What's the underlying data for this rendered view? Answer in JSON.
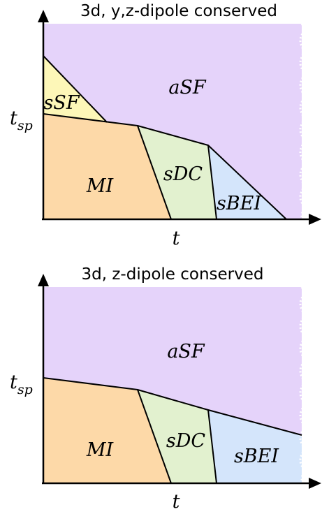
{
  "panels": [
    {
      "title": "3d, y,z-dipole conserved",
      "x_label": "t",
      "y_tick_label_main": "t",
      "y_tick_label_sub": "sp",
      "phases": {
        "aSF": "aSF",
        "sSF": "sSF",
        "MI": "MI",
        "sDC": "sDC",
        "sBEI": "sBEI"
      }
    },
    {
      "title": "3d, z-dipole conserved",
      "x_label": "t",
      "y_tick_label_main": "t",
      "y_tick_label_sub": "sp",
      "phases": {
        "aSF": "aSF",
        "MI": "MI",
        "sDC": "sDC",
        "sBEI": "sBEI"
      }
    }
  ],
  "colors": {
    "aSF": "#e5d3fa",
    "sSF": "#fdf7b8",
    "MI": "#fdd9a8",
    "sDC": "#e2f1cf",
    "sBEI": "#d4e5fb",
    "axis": "#000000"
  }
}
